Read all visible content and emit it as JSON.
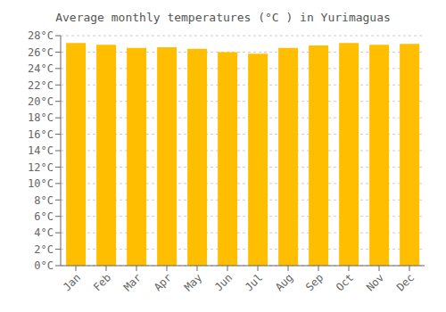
{
  "chart_data": {
    "type": "bar",
    "title": "Average monthly temperatures (°C ) in Yurimaguas",
    "categories": [
      "Jan",
      "Feb",
      "Mar",
      "Apr",
      "May",
      "Jun",
      "Jul",
      "Aug",
      "Sep",
      "Oct",
      "Nov",
      "Dec"
    ],
    "values": [
      27.1,
      26.9,
      26.5,
      26.6,
      26.4,
      26.0,
      25.8,
      26.5,
      26.8,
      27.1,
      26.9,
      27.0
    ],
    "color": "#FFBE00",
    "ylim": [
      0,
      28
    ],
    "yticks": [
      {
        "value": 0,
        "label": "0°C"
      },
      {
        "value": 2,
        "label": "2°C"
      },
      {
        "value": 4,
        "label": "4°C"
      },
      {
        "value": 6,
        "label": "6°C"
      },
      {
        "value": 8,
        "label": "8°C"
      },
      {
        "value": 10,
        "label": "10°C"
      },
      {
        "value": 12,
        "label": "12°C"
      },
      {
        "value": 14,
        "label": "14°C"
      },
      {
        "value": 16,
        "label": "16°C"
      },
      {
        "value": 18,
        "label": "18°C"
      },
      {
        "value": 20,
        "label": "20°C"
      },
      {
        "value": 22,
        "label": "22°C"
      },
      {
        "value": 24,
        "label": "24°C"
      },
      {
        "value": 26,
        "label": "26°C"
      },
      {
        "value": 28,
        "label": "28°C"
      }
    ],
    "grid": true
  }
}
